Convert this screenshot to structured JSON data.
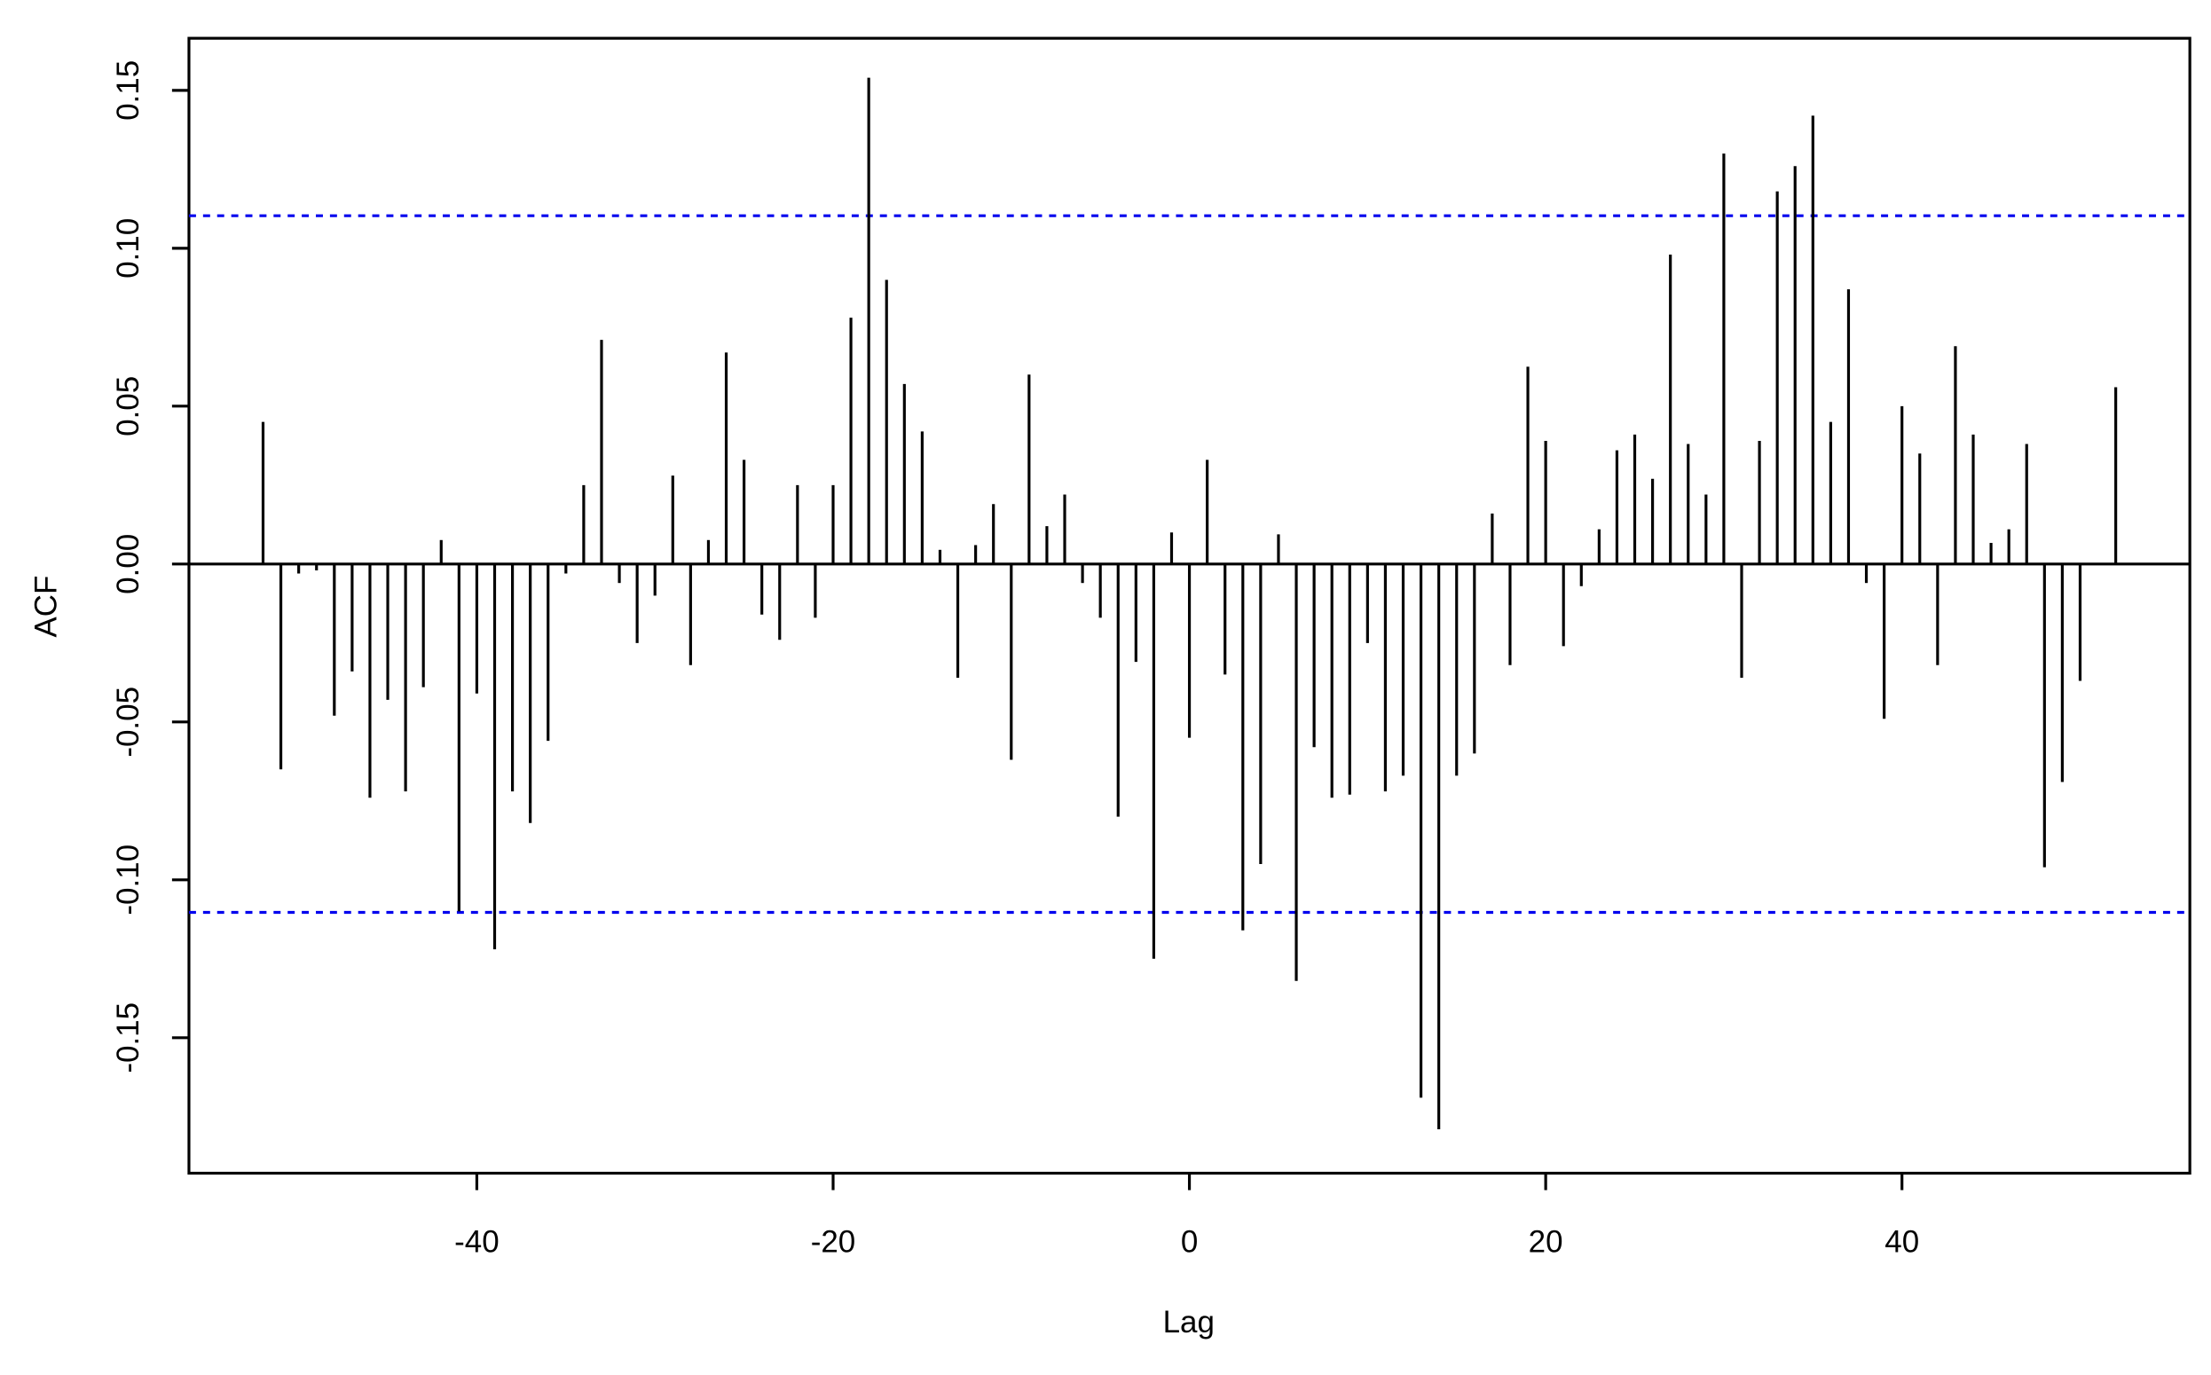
{
  "chart_data": {
    "type": "acf",
    "x_label": "Lag",
    "y_label": "ACF",
    "x": [
      -52,
      -51,
      -50,
      -49,
      -48,
      -47,
      -46,
      -45,
      -44,
      -43,
      -42,
      -41,
      -40,
      -39,
      -38,
      -37,
      -36,
      -35,
      -34,
      -33,
      -32,
      -31,
      -30,
      -29,
      -28,
      -27,
      -26,
      -25,
      -24,
      -23,
      -22,
      -21,
      -20,
      -19,
      -18,
      -17,
      -16,
      -15,
      -14,
      -13,
      -12,
      -11,
      -10,
      -9,
      -8,
      -7,
      -6,
      -5,
      -4,
      -3,
      -2,
      -1,
      0,
      1,
      2,
      3,
      4,
      5,
      6,
      7,
      8,
      9,
      10,
      11,
      12,
      13,
      14,
      15,
      16,
      17,
      18,
      19,
      20,
      21,
      22,
      23,
      24,
      25,
      26,
      27,
      28,
      29,
      30,
      31,
      32,
      33,
      34,
      35,
      36,
      37,
      38,
      39,
      40,
      41,
      42,
      43,
      44,
      45,
      46,
      47,
      48,
      49,
      50,
      51,
      52
    ],
    "values": [
      0.045,
      -0.065,
      -0.003,
      -0.002,
      -0.048,
      -0.034,
      -0.074,
      -0.043,
      -0.072,
      -0.039,
      0.0076,
      -0.11,
      -0.041,
      -0.122,
      -0.072,
      -0.082,
      -0.056,
      -0.003,
      0.025,
      0.071,
      -0.006,
      -0.025,
      -0.01,
      0.028,
      -0.032,
      0.0076,
      0.067,
      0.033,
      -0.016,
      -0.024,
      0.025,
      -0.017,
      0.025,
      0.078,
      0.154,
      0.09,
      0.057,
      0.042,
      0.0045,
      -0.036,
      0.006,
      0.019,
      -0.062,
      0.06,
      0.012,
      0.022,
      -0.006,
      -0.017,
      -0.08,
      -0.031,
      -0.125,
      0.01,
      -0.055,
      0.033,
      -0.035,
      -0.116,
      -0.095,
      0.0094,
      -0.132,
      -0.058,
      -0.074,
      -0.073,
      -0.025,
      -0.072,
      -0.067,
      -0.169,
      -0.179,
      -0.067,
      -0.06,
      0.016,
      -0.032,
      0.0625,
      0.039,
      -0.026,
      -0.007,
      0.011,
      0.036,
      0.041,
      0.027,
      0.098,
      0.038,
      0.022,
      0.13,
      -0.036,
      0.039,
      0.118,
      0.126,
      0.142,
      0.045,
      0.087,
      -0.006,
      -0.049,
      0.05,
      0.035,
      -0.032,
      0.069,
      0.041,
      0.0067,
      0.011,
      0.038,
      -0.096,
      -0.069,
      -0.037,
      0,
      0.056
    ],
    "color": "#000000",
    "ci": [
      0.1103,
      -0.1103
    ],
    "ci_color": "#0000ee",
    "xlim": [
      -56.16,
      56.16
    ],
    "ylim": [
      -0.1929,
      0.1665
    ],
    "xticks": [
      -40,
      -20,
      0,
      20,
      40
    ],
    "yticks": [
      -0.15,
      {
        "value": -0.1,
        "label": "-0.10"
      },
      -0.05,
      {
        "value": 0,
        "label": "0.00"
      },
      0.05,
      {
        "value": 0.1,
        "label": "0.10"
      },
      0.15
    ]
  }
}
